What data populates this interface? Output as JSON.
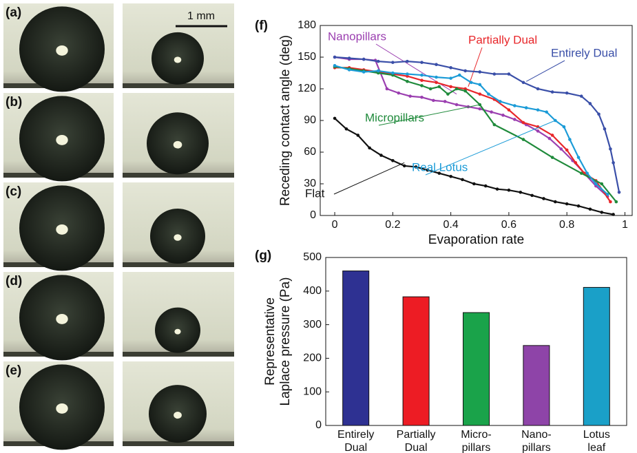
{
  "panels": [
    "(a)",
    "(b)",
    "(c)",
    "(d)",
    "(e)"
  ],
  "scale_bar": "1 mm",
  "chart_data": [
    {
      "type": "line",
      "panel_label": "(f)",
      "xlabel": "Evaporation rate",
      "ylabel": "Receding  contact angle (deg)",
      "xlim": [
        -0.05,
        1.025
      ],
      "ylim": [
        0,
        180
      ],
      "xticks": [
        0,
        0.2,
        0.4,
        0.6,
        0.8,
        1
      ],
      "yticks": [
        0,
        30,
        60,
        90,
        120,
        150,
        180
      ],
      "series": [
        {
          "name": "Flat",
          "color": "#111111",
          "x": [
            0,
            0.04,
            0.08,
            0.12,
            0.16,
            0.2,
            0.24,
            0.28,
            0.32,
            0.36,
            0.4,
            0.44,
            0.48,
            0.52,
            0.56,
            0.6,
            0.64,
            0.68,
            0.72,
            0.76,
            0.8,
            0.84,
            0.88,
            0.92,
            0.96
          ],
          "values": [
            92,
            82,
            76,
            64,
            57,
            52,
            47,
            46,
            43,
            40,
            37,
            34,
            30,
            28,
            25,
            24,
            22,
            19,
            16,
            13,
            11,
            9,
            6,
            3,
            1
          ]
        },
        {
          "name": "Nanopillars",
          "color": "#9b3fb0",
          "x": [
            0,
            0.05,
            0.1,
            0.14,
            0.18,
            0.22,
            0.26,
            0.3,
            0.34,
            0.38,
            0.42,
            0.46,
            0.5,
            0.54,
            0.58,
            0.62,
            0.66,
            0.7,
            0.74,
            0.78,
            0.82,
            0.86,
            0.9,
            0.94
          ],
          "values": [
            150,
            148,
            148,
            147,
            120,
            116,
            113,
            112,
            109,
            108,
            105,
            103,
            101,
            98,
            95,
            91,
            86,
            80,
            73,
            63,
            52,
            40,
            28,
            18
          ]
        },
        {
          "name": "Partially Dual",
          "color": "#e8262a",
          "x": [
            0,
            0.05,
            0.1,
            0.15,
            0.2,
            0.25,
            0.3,
            0.35,
            0.4,
            0.45,
            0.5,
            0.55,
            0.6,
            0.65,
            0.7,
            0.75,
            0.8,
            0.83,
            0.86,
            0.9,
            0.95
          ],
          "values": [
            140,
            140,
            138,
            136,
            134,
            132,
            128,
            126,
            122,
            120,
            115,
            110,
            100,
            88,
            84,
            76,
            62,
            50,
            40,
            33,
            13
          ]
        },
        {
          "name": "Entirely Dual",
          "color": "#3a4fa8",
          "x": [
            0,
            0.05,
            0.1,
            0.15,
            0.2,
            0.25,
            0.3,
            0.35,
            0.4,
            0.45,
            0.5,
            0.55,
            0.6,
            0.65,
            0.7,
            0.75,
            0.8,
            0.85,
            0.88,
            0.91,
            0.93,
            0.95,
            0.96,
            0.98
          ],
          "values": [
            150,
            149,
            148,
            146,
            145,
            146,
            145,
            143,
            140,
            137,
            136,
            134,
            134,
            126,
            120,
            117,
            116,
            113,
            106,
            96,
            82,
            63,
            50,
            22
          ]
        },
        {
          "name": "Micropillars",
          "color": "#1f8a3b",
          "x": [
            0,
            0.05,
            0.1,
            0.15,
            0.2,
            0.25,
            0.3,
            0.33,
            0.36,
            0.39,
            0.42,
            0.45,
            0.5,
            0.55,
            0.65,
            0.75,
            0.85,
            0.92,
            0.97
          ],
          "values": [
            141,
            139,
            137,
            135,
            133,
            127,
            123,
            120,
            122,
            115,
            120,
            118,
            105,
            86,
            72,
            55,
            40,
            30,
            13
          ]
        },
        {
          "name": "Real Lotus",
          "color": "#1b9bd7",
          "x": [
            0,
            0.05,
            0.1,
            0.15,
            0.2,
            0.25,
            0.3,
            0.35,
            0.4,
            0.43,
            0.47,
            0.5,
            0.53,
            0.57,
            0.62,
            0.66,
            0.7,
            0.73,
            0.76,
            0.79,
            0.81,
            0.84,
            0.87,
            0.9,
            0.94
          ],
          "values": [
            142,
            138,
            136,
            137,
            135,
            134,
            133,
            131,
            130,
            133,
            126,
            124,
            115,
            108,
            104,
            102,
            100,
            98,
            90,
            84,
            72,
            55,
            40,
            30,
            20
          ]
        }
      ]
    },
    {
      "type": "bar",
      "panel_label": "(g)",
      "ylabel": [
        "Representative",
        "Laplace pressure (Pa)"
      ],
      "categories": [
        "Entirely Dual",
        "Partially Dual",
        "Micro-pillars",
        "Nano-pillars",
        "Lotus leaf"
      ],
      "values": [
        460,
        383,
        336,
        238,
        411
      ],
      "colors": [
        "#2e3192",
        "#ed1c24",
        "#1aa34a",
        "#8e44a8",
        "#1aa0c8"
      ],
      "ylim": [
        0,
        500
      ],
      "yticks": [
        0,
        100,
        200,
        300,
        400,
        500
      ]
    }
  ]
}
